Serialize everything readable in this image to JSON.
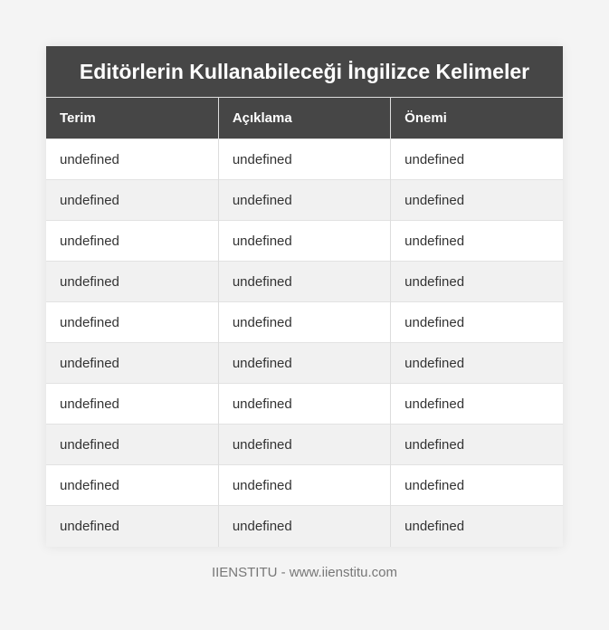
{
  "table": {
    "title": "Editörlerin Kullanabileceği İngilizce Kelimeler",
    "columns": [
      "Terim",
      "Açıklama",
      "Önemi"
    ],
    "rows": [
      [
        "undefined",
        "undefined",
        "undefined"
      ],
      [
        "undefined",
        "undefined",
        "undefined"
      ],
      [
        "undefined",
        "undefined",
        "undefined"
      ],
      [
        "undefined",
        "undefined",
        "undefined"
      ],
      [
        "undefined",
        "undefined",
        "undefined"
      ],
      [
        "undefined",
        "undefined",
        "undefined"
      ],
      [
        "undefined",
        "undefined",
        "undefined"
      ],
      [
        "undefined",
        "undefined",
        "undefined"
      ],
      [
        "undefined",
        "undefined",
        "undefined"
      ],
      [
        "undefined",
        "undefined",
        "undefined"
      ]
    ]
  },
  "footer": {
    "text": "IIENSTITU - www.iienstitu.com"
  },
  "colors": {
    "header_bg": "#464646",
    "stripe": "#f1f1f1"
  }
}
